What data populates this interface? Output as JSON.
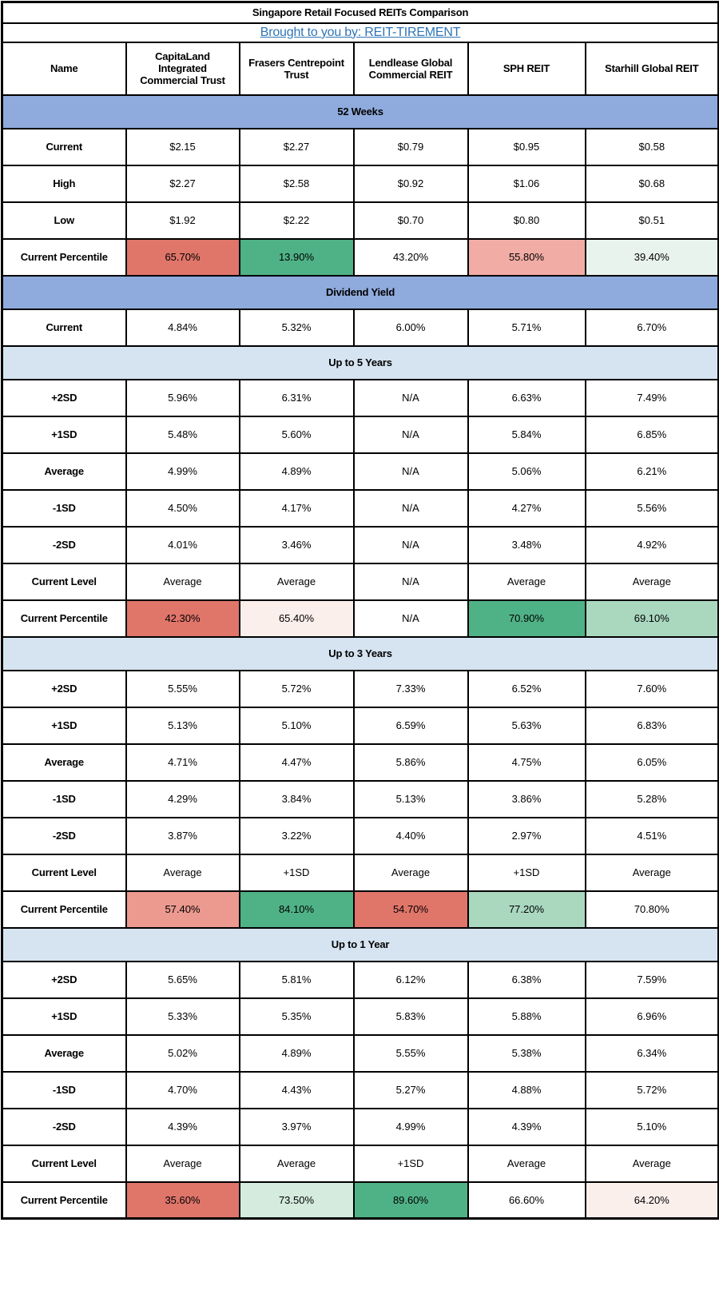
{
  "title": "Singapore Retail Focused REITs Comparison",
  "byline": {
    "link_text": "Brought to you by: REIT-TIREMENT"
  },
  "columns": [
    "Name",
    "CapitaLand Integrated Commercial Trust",
    "Frasers Centrepoint Trust",
    "Lendlease Global Commercial REIT",
    "SPH REIT",
    "Starhill Global REIT"
  ],
  "theme": {
    "section_header_dark_blue": "#8FAADC",
    "section_header_light_blue": "#D6E4F1",
    "link_color": "#2E75B6",
    "border_color": "#000000",
    "strong_red": "#E0756A",
    "strong_green": "#4FB286"
  },
  "sections": [
    {
      "label": "52 Weeks",
      "style": "dark",
      "rows": [
        {
          "label": "Current",
          "values": [
            "$2.15",
            "$2.27",
            "$0.79",
            "$0.95",
            "$0.58"
          ]
        },
        {
          "label": "High",
          "values": [
            "$2.27",
            "$2.58",
            "$0.92",
            "$1.06",
            "$0.68"
          ]
        },
        {
          "label": "Low",
          "values": [
            "$1.92",
            "$2.22",
            "$0.70",
            "$0.80",
            "$0.51"
          ]
        },
        {
          "label": "Current Percentile",
          "values": [
            "65.70%",
            "13.90%",
            "43.20%",
            "55.80%",
            "39.40%"
          ],
          "cell_colors": [
            "#E0756A",
            "#4FB286",
            "#FFFFFF",
            "#F1ACA5",
            "#E9F3ED"
          ]
        }
      ]
    },
    {
      "label": "Dividend Yield",
      "style": "dark",
      "rows": [
        {
          "label": "Current",
          "values": [
            "4.84%",
            "5.32%",
            "6.00%",
            "5.71%",
            "6.70%"
          ]
        }
      ]
    },
    {
      "label": "Up to 5 Years",
      "style": "light",
      "rows": [
        {
          "label": "+2SD",
          "values": [
            "5.96%",
            "6.31%",
            "N/A",
            "6.63%",
            "7.49%"
          ]
        },
        {
          "label": "+1SD",
          "values": [
            "5.48%",
            "5.60%",
            "N/A",
            "5.84%",
            "6.85%"
          ]
        },
        {
          "label": "Average",
          "values": [
            "4.99%",
            "4.89%",
            "N/A",
            "5.06%",
            "6.21%"
          ]
        },
        {
          "label": "-1SD",
          "values": [
            "4.50%",
            "4.17%",
            "N/A",
            "4.27%",
            "5.56%"
          ]
        },
        {
          "label": "-2SD",
          "values": [
            "4.01%",
            "3.46%",
            "N/A",
            "3.48%",
            "4.92%"
          ]
        },
        {
          "label": "Current Level",
          "values": [
            "Average",
            "Average",
            "N/A",
            "Average",
            "Average"
          ]
        },
        {
          "label": "Current Percentile",
          "values": [
            "42.30%",
            "65.40%",
            "N/A",
            "70.90%",
            "69.10%"
          ],
          "cell_colors": [
            "#E0756A",
            "#FBEFEC",
            "#FFFFFF",
            "#4FB286",
            "#A9D8BF"
          ]
        }
      ]
    },
    {
      "label": "Up to 3 Years",
      "style": "light",
      "rows": [
        {
          "label": "+2SD",
          "values": [
            "5.55%",
            "5.72%",
            "7.33%",
            "6.52%",
            "7.60%"
          ]
        },
        {
          "label": "+1SD",
          "values": [
            "5.13%",
            "5.10%",
            "6.59%",
            "5.63%",
            "6.83%"
          ]
        },
        {
          "label": "Average",
          "values": [
            "4.71%",
            "4.47%",
            "5.86%",
            "4.75%",
            "6.05%"
          ]
        },
        {
          "label": "-1SD",
          "values": [
            "4.29%",
            "3.84%",
            "5.13%",
            "3.86%",
            "5.28%"
          ]
        },
        {
          "label": "-2SD",
          "values": [
            "3.87%",
            "3.22%",
            "4.40%",
            "2.97%",
            "4.51%"
          ]
        },
        {
          "label": "Current Level",
          "values": [
            "Average",
            "+1SD",
            "Average",
            "+1SD",
            "Average"
          ]
        },
        {
          "label": "Current Percentile",
          "values": [
            "57.40%",
            "84.10%",
            "54.70%",
            "77.20%",
            "70.80%"
          ],
          "cell_colors": [
            "#EC998F",
            "#4FB286",
            "#E0756A",
            "#A9D8BF",
            "#FFFFFF"
          ]
        }
      ]
    },
    {
      "label": "Up to 1 Year",
      "style": "light",
      "rows": [
        {
          "label": "+2SD",
          "values": [
            "5.65%",
            "5.81%",
            "6.12%",
            "6.38%",
            "7.59%"
          ]
        },
        {
          "label": "+1SD",
          "values": [
            "5.33%",
            "5.35%",
            "5.83%",
            "5.88%",
            "6.96%"
          ]
        },
        {
          "label": "Average",
          "values": [
            "5.02%",
            "4.89%",
            "5.55%",
            "5.38%",
            "6.34%"
          ]
        },
        {
          "label": "-1SD",
          "values": [
            "4.70%",
            "4.43%",
            "5.27%",
            "4.88%",
            "5.72%"
          ]
        },
        {
          "label": "-2SD",
          "values": [
            "4.39%",
            "3.97%",
            "4.99%",
            "4.39%",
            "5.10%"
          ]
        },
        {
          "label": "Current Level",
          "values": [
            "Average",
            "Average",
            "+1SD",
            "Average",
            "Average"
          ]
        },
        {
          "label": "Current Percentile",
          "values": [
            "35.60%",
            "73.50%",
            "89.60%",
            "66.60%",
            "64.20%"
          ],
          "cell_colors": [
            "#E0756A",
            "#D4EBDE",
            "#4FB286",
            "#FFFFFF",
            "#FBEFEC"
          ]
        }
      ]
    }
  ]
}
